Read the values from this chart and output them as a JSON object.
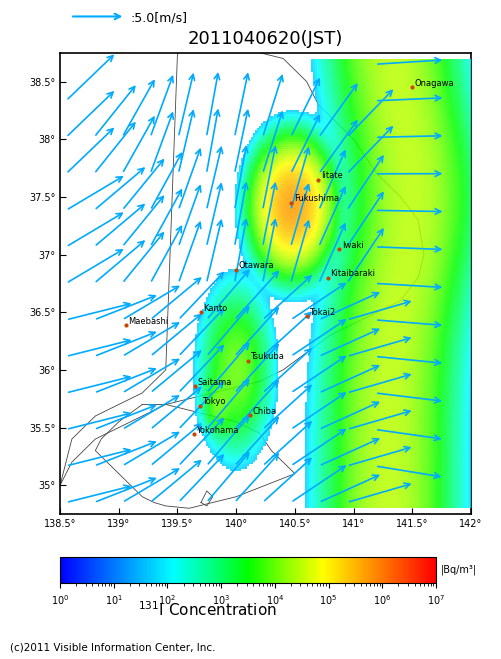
{
  "title": "2011040620(JST)",
  "wind_legend_text": ":5.0[m/s]",
  "colorbar_label": "|Bq/m³|",
  "concentration_label": "I Concentration",
  "concentration_isotope": "131",
  "copyright_text": "(c)2011 Visible Information Center, Inc.",
  "xlim": [
    138.5,
    142.0
  ],
  "ylim": [
    34.75,
    38.75
  ],
  "xticks": [
    138.5,
    139.0,
    139.5,
    140.0,
    140.5,
    141.0,
    141.5,
    142.0
  ],
  "yticks": [
    35.0,
    35.5,
    36.0,
    36.5,
    37.0,
    37.5,
    38.0,
    38.5
  ],
  "xlabel_labels": [
    "138.5°",
    "139°",
    "139.5°",
    "140°",
    "140.5°",
    "141°",
    "141.5°",
    "142°"
  ],
  "ylabel_labels": [
    "35°",
    "35.5°",
    "36°",
    "36.5°",
    "37°",
    "37.5°",
    "38°",
    "38.5°"
  ],
  "colormap_vmin": 1,
  "colormap_vmax": 10000000.0,
  "background_color": "#000000",
  "map_bg_color": "#ffffff",
  "cities": [
    {
      "name": "Onagawa",
      "lon": 141.5,
      "lat": 38.45,
      "dot": true
    },
    {
      "name": "Iitate",
      "lon": 140.7,
      "lat": 37.65,
      "dot": true
    },
    {
      "name": "Fukushima",
      "lon": 140.47,
      "lat": 37.45,
      "dot": true
    },
    {
      "name": "Iwaki",
      "lon": 140.88,
      "lat": 37.05,
      "dot": true
    },
    {
      "name": "Otawara",
      "lon": 140.0,
      "lat": 36.87,
      "dot": true
    },
    {
      "name": "Kitaibaraki",
      "lon": 140.78,
      "lat": 36.8,
      "dot": true
    },
    {
      "name": "Maebashi",
      "lon": 139.06,
      "lat": 36.39,
      "dot": true
    },
    {
      "name": "Kanto",
      "lon": 139.7,
      "lat": 36.5,
      "dot": true
    },
    {
      "name": "Tokai2",
      "lon": 140.6,
      "lat": 36.47,
      "dot": true
    },
    {
      "name": "Tsukuba",
      "lon": 140.1,
      "lat": 36.08,
      "dot": true
    },
    {
      "name": "Saitama",
      "lon": 139.65,
      "lat": 35.86,
      "dot": true
    },
    {
      "name": "Tokyo",
      "lon": 139.69,
      "lat": 35.69,
      "dot": true
    },
    {
      "name": "Chiba",
      "lon": 140.12,
      "lat": 35.61,
      "dot": true
    },
    {
      "name": "Yokohama",
      "lon": 139.64,
      "lat": 35.44,
      "dot": true
    }
  ],
  "arrow_color": "#00aaff",
  "wind_arrow_scale": 5.0,
  "figure_bg": "#ffffff"
}
